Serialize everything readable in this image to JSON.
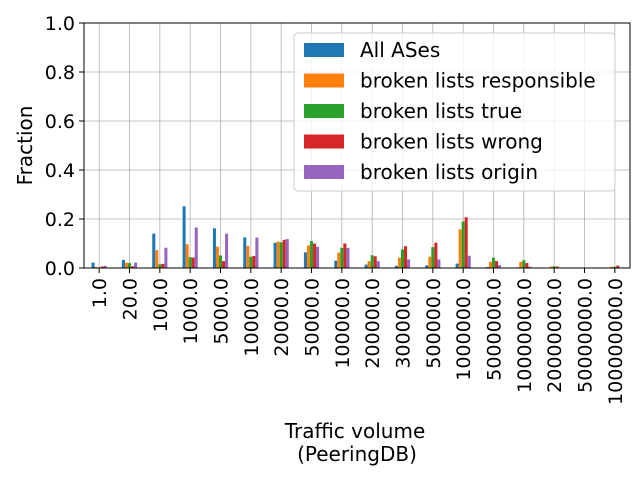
{
  "chart_data": {
    "type": "bar",
    "xlabel_lines": [
      "Traffic volume",
      "(PeeringDB)"
    ],
    "ylabel": "Fraction",
    "ylim": [
      0,
      1.0
    ],
    "yticks": [
      "0.0",
      "0.2",
      "0.4",
      "0.6",
      "0.8",
      "1.0"
    ],
    "grid": true,
    "legend_position": "top-right",
    "categories": [
      "1.0",
      "20.0",
      "100.0",
      "1000.0",
      "5000.0",
      "10000.0",
      "20000.0",
      "50000.0",
      "100000.0",
      "200000.0",
      "300000.0",
      "500000.0",
      "1000000.0",
      "5000000.0",
      "10000000.0",
      "20000000.0",
      "50000000.0",
      "100000000.0"
    ],
    "series": [
      {
        "name": "All ASes",
        "color": "#1f77b4",
        "values": [
          0.022,
          0.033,
          0.14,
          0.252,
          0.162,
          0.125,
          0.103,
          0.064,
          0.03,
          0.014,
          0.009,
          0.011,
          0.018,
          0.004,
          0.003,
          0.001,
          0.0005,
          0.002
        ]
      },
      {
        "name": "broken lists responsible",
        "color": "#ff7f0e",
        "values": [
          0.004,
          0.022,
          0.073,
          0.097,
          0.087,
          0.09,
          0.108,
          0.092,
          0.063,
          0.028,
          0.042,
          0.046,
          0.158,
          0.025,
          0.025,
          0.006,
          0.0,
          0.005
        ]
      },
      {
        "name": "broken lists true",
        "color": "#2ca02c",
        "values": [
          0.002,
          0.02,
          0.015,
          0.044,
          0.051,
          0.046,
          0.105,
          0.11,
          0.082,
          0.052,
          0.076,
          0.085,
          0.19,
          0.042,
          0.032,
          0.007,
          0.0,
          0.005
        ]
      },
      {
        "name": "broken lists wrong",
        "color": "#d62728",
        "values": [
          0.006,
          0.007,
          0.017,
          0.043,
          0.028,
          0.049,
          0.115,
          0.1,
          0.1,
          0.048,
          0.089,
          0.103,
          0.207,
          0.028,
          0.02,
          0.006,
          0.0,
          0.01
        ]
      },
      {
        "name": "broken lists origin",
        "color": "#9467bd",
        "values": [
          0.009,
          0.022,
          0.083,
          0.165,
          0.14,
          0.124,
          0.118,
          0.087,
          0.082,
          0.028,
          0.035,
          0.035,
          0.05,
          0.012,
          0.005,
          0.002,
          0.0,
          0.0
        ]
      }
    ]
  }
}
